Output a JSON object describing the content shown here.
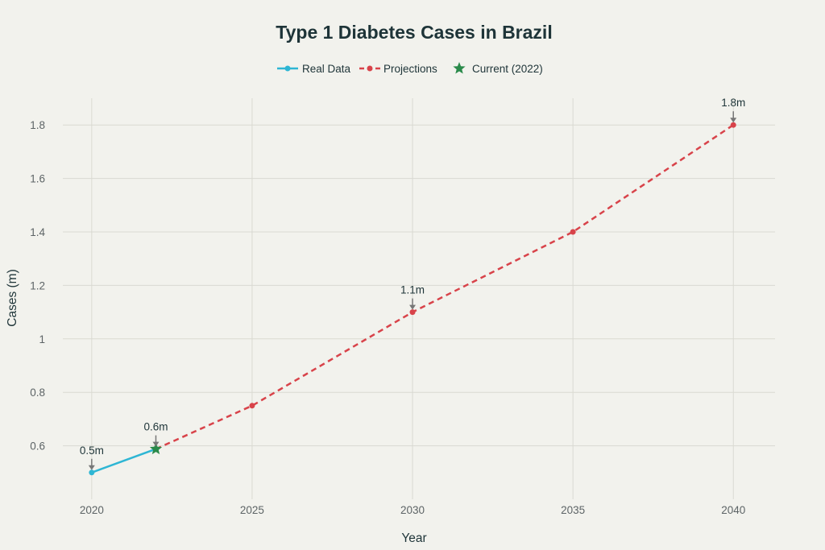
{
  "chart_data": {
    "type": "line",
    "title": "Type 1 Diabetes Cases in Brazil",
    "xlabel": "Year",
    "ylabel": "Cases (m)",
    "xlim": [
      2019.1,
      2041.3
    ],
    "ylim": [
      0.4,
      1.9
    ],
    "x_ticks": [
      2020,
      2025,
      2030,
      2035,
      2040
    ],
    "x_tick_labels": [
      "2020",
      "2025",
      "2030",
      "2035",
      "2040"
    ],
    "y_ticks": [
      0.6,
      0.8,
      1.0,
      1.2,
      1.4,
      1.6,
      1.8
    ],
    "y_tick_labels": [
      "0.6",
      "0.8",
      "1",
      "1.2",
      "1.4",
      "1.6",
      "1.8"
    ],
    "grid": true,
    "legend_position": "top-center",
    "series": [
      {
        "name": "Real Data",
        "style": "solid-line-markers",
        "color": "#2eb6d4",
        "x": [
          2020,
          2022
        ],
        "y": [
          0.5,
          0.588
        ]
      },
      {
        "name": "Projections",
        "style": "dashed-line-markers",
        "color": "#d8434a",
        "x": [
          2022,
          2025,
          2030,
          2035,
          2040
        ],
        "y": [
          0.588,
          0.75,
          1.1,
          1.4,
          1.8
        ]
      },
      {
        "name": "Current (2022)",
        "style": "star-marker",
        "color": "#2a8a4a",
        "x": [
          2022
        ],
        "y": [
          0.588
        ]
      }
    ],
    "annotations": [
      {
        "x": 2020,
        "y": 0.5,
        "text": "0.5m"
      },
      {
        "x": 2022,
        "y": 0.588,
        "text": "0.6m"
      },
      {
        "x": 2030,
        "y": 1.1,
        "text": "1.1m"
      },
      {
        "x": 2040,
        "y": 1.8,
        "text": "1.8m"
      }
    ]
  }
}
